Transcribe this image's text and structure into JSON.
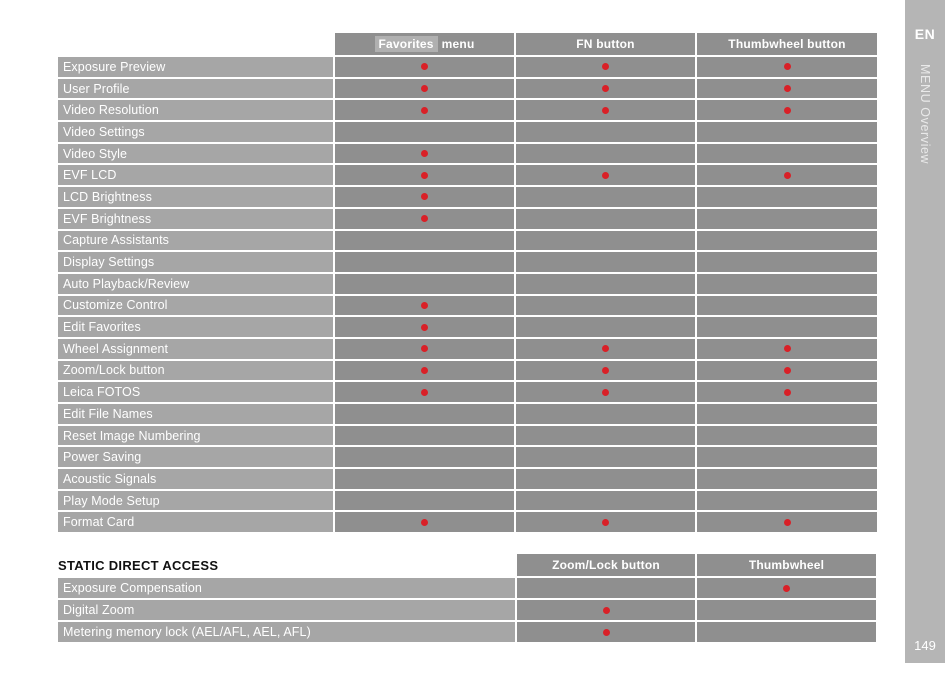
{
  "sidebar": {
    "language": "EN",
    "section": "MENU Overview",
    "page_number": "149"
  },
  "menu_table": {
    "header": {
      "favorites_word": "Favorites",
      "favorites_rest": "menu",
      "fn": "FN button",
      "thumbwheel": "Thumbwheel button"
    },
    "columns": [
      "Favorites menu",
      "FN button",
      "Thumbwheel button"
    ],
    "rows": [
      {
        "label": "Exposure Preview",
        "dots": [
          true,
          true,
          true
        ]
      },
      {
        "label": "User Profile",
        "dots": [
          true,
          true,
          true
        ]
      },
      {
        "label": "Video Resolution",
        "dots": [
          true,
          true,
          true
        ]
      },
      {
        "label": "Video Settings",
        "dots": [
          false,
          false,
          false
        ]
      },
      {
        "label": "Video Style",
        "dots": [
          true,
          false,
          false
        ]
      },
      {
        "label": "EVF LCD",
        "dots": [
          true,
          true,
          true
        ]
      },
      {
        "label": "LCD Brightness",
        "dots": [
          true,
          false,
          false
        ]
      },
      {
        "label": "EVF Brightness",
        "dots": [
          true,
          false,
          false
        ]
      },
      {
        "label": "Capture Assistants",
        "dots": [
          false,
          false,
          false
        ]
      },
      {
        "label": "Display Settings",
        "dots": [
          false,
          false,
          false
        ]
      },
      {
        "label": "Auto Playback/Review",
        "dots": [
          false,
          false,
          false
        ]
      },
      {
        "label": "Customize Control",
        "dots": [
          true,
          false,
          false
        ]
      },
      {
        "label": "Edit Favorites",
        "dots": [
          true,
          false,
          false
        ]
      },
      {
        "label": "Wheel Assignment",
        "dots": [
          true,
          true,
          true
        ]
      },
      {
        "label": "Zoom/Lock button",
        "dots": [
          true,
          true,
          true
        ]
      },
      {
        "label": "Leica FOTOS",
        "dots": [
          true,
          true,
          true
        ]
      },
      {
        "label": "Edit File Names",
        "dots": [
          false,
          false,
          false
        ]
      },
      {
        "label": "Reset Image Numbering",
        "dots": [
          false,
          false,
          false
        ]
      },
      {
        "label": "Power Saving",
        "dots": [
          false,
          false,
          false
        ]
      },
      {
        "label": "Acoustic Signals",
        "dots": [
          false,
          false,
          false
        ]
      },
      {
        "label": "Play Mode Setup",
        "dots": [
          false,
          false,
          false
        ]
      },
      {
        "label": "Format Card",
        "dots": [
          true,
          true,
          true
        ]
      }
    ]
  },
  "static_table": {
    "title": "STATIC DIRECT ACCESS",
    "columns": [
      "Zoom/Lock button",
      "Thumbwheel"
    ],
    "rows": [
      {
        "label": "Exposure Compensation",
        "dots": [
          false,
          true
        ]
      },
      {
        "label": "Digital Zoom",
        "dots": [
          true,
          false
        ]
      },
      {
        "label": "Metering memory lock (AEL/AFL, AEL, AFL)",
        "dots": [
          true,
          false
        ]
      }
    ]
  },
  "colors": {
    "cell_dark": "#8f8f8f",
    "cell_light": "#a6a6a6",
    "sidebar_gray": "#b5b5b5",
    "dot_red": "#d92027",
    "favorites_highlight": "#b0b0b0"
  }
}
